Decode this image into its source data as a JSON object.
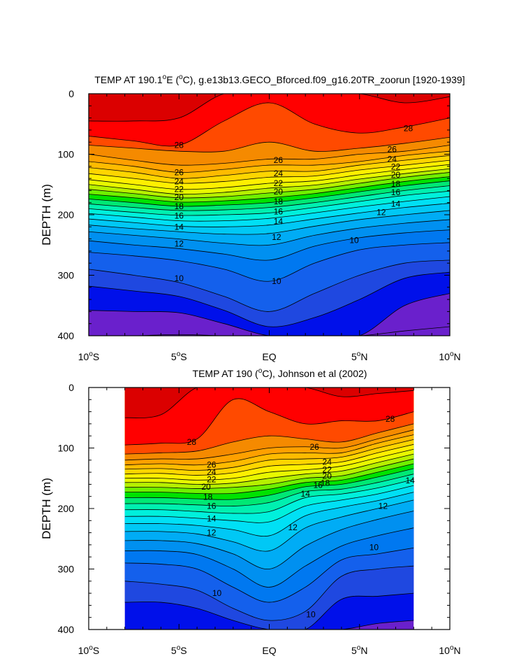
{
  "chart_data": [
    {
      "type": "heatmap",
      "subtype": "filled-contour",
      "title": "TEMP AT 190.1°E (°C), g.e13b13.GECO_Bforced.f09_g16.20TR_zoorun [1920-1939]",
      "title_parts": {
        "prefix": "TEMP AT 190.1",
        "sup1": "o",
        "mid1": "E (",
        "sup2": "o",
        "suffix": "C), g.e13b13.GECO_Bforced.f09_g16.20TR_zoorun [1920-1939]"
      },
      "ylabel": "DEPTH (m)",
      "xlabel": "",
      "xlim": [
        -10,
        10
      ],
      "ylim": [
        400,
        0
      ],
      "x_ticks": [
        {
          "value": -10,
          "num": "10",
          "deg": "o",
          "hemi": "S"
        },
        {
          "value": -5,
          "num": "5",
          "deg": "o",
          "hemi": "S"
        },
        {
          "value": 0,
          "num": "EQ",
          "deg": "",
          "hemi": ""
        },
        {
          "value": 5,
          "num": "5",
          "deg": "o",
          "hemi": "N"
        },
        {
          "value": 10,
          "num": "10",
          "deg": "o",
          "hemi": "N"
        }
      ],
      "y_ticks": [
        "0",
        "100",
        "200",
        "300",
        "400"
      ],
      "data_x_range": [
        -10,
        10
      ],
      "contour_interval": 1,
      "x_nodes": [
        -10,
        -7.5,
        -5,
        -2.5,
        0,
        2.5,
        5,
        7.5,
        10
      ],
      "isotherm_depths": {
        "29": [
          45,
          45,
          40,
          0,
          0,
          0,
          0,
          15,
          5
        ],
        "28": [
          70,
          78,
          85,
          45,
          15,
          50,
          65,
          55,
          40
        ],
        "27": [
          85,
          90,
          95,
          95,
          80,
          95,
          90,
          82,
          72
        ],
        "26": [
          100,
          110,
          118,
          115,
          108,
          108,
          100,
          95,
          85
        ],
        "25": [
          112,
          120,
          130,
          125,
          118,
          118,
          112,
          102,
          95
        ],
        "24": [
          122,
          130,
          140,
          135,
          128,
          128,
          118,
          110,
          102
        ],
        "23": [
          132,
          140,
          148,
          145,
          138,
          136,
          126,
          118,
          110
        ],
        "22": [
          142,
          150,
          158,
          155,
          148,
          144,
          134,
          125,
          117
        ],
        "21": [
          150,
          158,
          166,
          163,
          156,
          151,
          141,
          132,
          124
        ],
        "20": [
          158,
          165,
          172,
          170,
          164,
          158,
          148,
          138,
          130
        ],
        "19": [
          166,
          172,
          179,
          177,
          172,
          165,
          155,
          145,
          137
        ],
        "18": [
          174,
          180,
          186,
          184,
          180,
          172,
          162,
          152,
          144
        ],
        "17": [
          182,
          188,
          193,
          192,
          188,
          180,
          170,
          160,
          152
        ],
        "16": [
          190,
          196,
          201,
          200,
          197,
          188,
          178,
          168,
          161
        ],
        "15": [
          198,
          204,
          210,
          210,
          206,
          197,
          187,
          178,
          170
        ],
        "14": [
          207,
          213,
          219,
          220,
          217,
          207,
          197,
          188,
          181
        ],
        "13": [
          217,
          223,
          228,
          232,
          231,
          219,
          208,
          200,
          193
        ],
        "12": [
          228,
          234,
          240,
          247,
          250,
          234,
          222,
          214,
          208
        ],
        "11": [
          243,
          250,
          256,
          265,
          275,
          252,
          238,
          230,
          225
        ],
        "10": [
          262,
          268,
          276,
          290,
          310,
          280,
          258,
          250,
          246
        ],
        "9": [
          290,
          300,
          312,
          335,
          360,
          330,
          300,
          280,
          275
        ],
        "8": [
          318,
          326,
          335,
          358,
          385,
          370,
          340,
          305,
          295
        ],
        "7": [
          358,
          360,
          362,
          380,
          400,
          400,
          400,
          350,
          330
        ],
        "6": [
          400,
          400,
          398,
          400,
          400,
          400,
          400,
          392,
          385
        ]
      },
      "line_labels": [
        {
          "text": "28",
          "x": -5,
          "y": 85
        },
        {
          "text": "28",
          "x": 7.7,
          "y": 57
        },
        {
          "text": "26",
          "x": -5,
          "y": 130
        },
        {
          "text": "26",
          "x": 0.5,
          "y": 110
        },
        {
          "text": "26",
          "x": 6.8,
          "y": 92
        },
        {
          "text": "24",
          "x": -5,
          "y": 145
        },
        {
          "text": "24",
          "x": 0.5,
          "y": 132
        },
        {
          "text": "24",
          "x": 6.8,
          "y": 108
        },
        {
          "text": "22",
          "x": -5,
          "y": 158
        },
        {
          "text": "22",
          "x": 0.5,
          "y": 148
        },
        {
          "text": "22",
          "x": 7,
          "y": 121
        },
        {
          "text": "20",
          "x": -5,
          "y": 171
        },
        {
          "text": "20",
          "x": 0.5,
          "y": 162
        },
        {
          "text": "20",
          "x": 7,
          "y": 134
        },
        {
          "text": "18",
          "x": -5,
          "y": 186
        },
        {
          "text": "18",
          "x": 0.5,
          "y": 178
        },
        {
          "text": "18",
          "x": 7,
          "y": 149
        },
        {
          "text": "16",
          "x": -5,
          "y": 202
        },
        {
          "text": "16",
          "x": 0.5,
          "y": 195
        },
        {
          "text": "16",
          "x": 7,
          "y": 163
        },
        {
          "text": "14",
          "x": -5,
          "y": 220
        },
        {
          "text": "14",
          "x": 0.5,
          "y": 211
        },
        {
          "text": "14",
          "x": 7,
          "y": 182
        },
        {
          "text": "12",
          "x": -5,
          "y": 248
        },
        {
          "text": "12",
          "x": 0.4,
          "y": 237
        },
        {
          "text": "12",
          "x": 6.2,
          "y": 196
        },
        {
          "text": "10",
          "x": -5,
          "y": 305
        },
        {
          "text": "10",
          "x": 0.4,
          "y": 310
        },
        {
          "text": "10",
          "x": 4.7,
          "y": 242
        }
      ]
    },
    {
      "type": "heatmap",
      "subtype": "filled-contour",
      "title": "TEMP AT 190 (°C), Johnson et al (2002)",
      "title_parts": {
        "prefix": "TEMP AT 190 (",
        "sup1": "o",
        "mid1": "C), Johnson et al (2002)",
        "sup2": "",
        "suffix": ""
      },
      "ylabel": "DEPTH (m)",
      "xlabel": "",
      "xlim": [
        -10,
        10
      ],
      "ylim": [
        400,
        0
      ],
      "x_ticks": [
        {
          "value": -10,
          "num": "10",
          "deg": "o",
          "hemi": "S"
        },
        {
          "value": -5,
          "num": "5",
          "deg": "o",
          "hemi": "S"
        },
        {
          "value": 0,
          "num": "EQ",
          "deg": "",
          "hemi": ""
        },
        {
          "value": 5,
          "num": "5",
          "deg": "o",
          "hemi": "N"
        },
        {
          "value": 10,
          "num": "10",
          "deg": "o",
          "hemi": "N"
        }
      ],
      "y_ticks": [
        "0",
        "100",
        "200",
        "300",
        "400"
      ],
      "data_x_range": [
        -8,
        8
      ],
      "contour_interval": 1,
      "x_nodes": [
        -8,
        -6,
        -4,
        -2,
        0,
        2,
        4,
        6,
        8
      ],
      "isotherm_depths": {
        "29": [
          50,
          45,
          0,
          0,
          0,
          0,
          15,
          10,
          5
        ],
        "28": [
          95,
          92,
          85,
          20,
          40,
          60,
          55,
          55,
          40
        ],
        "27": [
          110,
          108,
          105,
          90,
          80,
          85,
          90,
          75,
          60
        ],
        "26": [
          120,
          118,
          118,
          110,
          100,
          98,
          100,
          85,
          70
        ],
        "25": [
          128,
          126,
          128,
          122,
          110,
          108,
          108,
          92,
          78
        ],
        "24": [
          135,
          134,
          137,
          132,
          120,
          118,
          115,
          100,
          86
        ],
        "23": [
          143,
          142,
          145,
          141,
          130,
          127,
          123,
          108,
          94
        ],
        "22": [
          150,
          150,
          153,
          150,
          140,
          136,
          130,
          116,
          102
        ],
        "21": [
          157,
          157,
          160,
          158,
          150,
          143,
          138,
          124,
          110
        ],
        "20": [
          165,
          165,
          167,
          165,
          160,
          150,
          146,
          132,
          118
        ],
        "19": [
          173,
          173,
          175,
          175,
          168,
          157,
          153,
          140,
          126
        ],
        "18": [
          182,
          182,
          184,
          185,
          178,
          164,
          160,
          148,
          134
        ],
        "17": [
          192,
          192,
          194,
          196,
          190,
          172,
          168,
          157,
          143
        ],
        "16": [
          202,
          202,
          205,
          208,
          205,
          182,
          176,
          166,
          152
        ],
        "15": [
          213,
          213,
          216,
          220,
          222,
          196,
          186,
          176,
          162
        ],
        "14": [
          225,
          225,
          228,
          235,
          245,
          212,
          198,
          187,
          173
        ],
        "13": [
          238,
          238,
          242,
          255,
          270,
          232,
          214,
          200,
          186
        ],
        "12": [
          253,
          253,
          258,
          275,
          300,
          262,
          235,
          218,
          204
        ],
        "11": [
          270,
          270,
          276,
          300,
          330,
          295,
          262,
          245,
          232
        ],
        "10": [
          290,
          292,
          300,
          330,
          355,
          330,
          285,
          275,
          265
        ],
        "9": [
          320,
          325,
          335,
          365,
          385,
          370,
          312,
          300,
          295
        ],
        "8": [
          355,
          355,
          365,
          385,
          400,
          400,
          350,
          345,
          340
        ],
        "7": [
          400,
          400,
          400,
          400,
          400,
          400,
          400,
          390,
          385
        ]
      },
      "line_labels": [
        {
          "text": "28",
          "x": -4.3,
          "y": 90
        },
        {
          "text": "28",
          "x": 6.7,
          "y": 52
        },
        {
          "text": "26",
          "x": -3.2,
          "y": 128
        },
        {
          "text": "26",
          "x": 2.5,
          "y": 98
        },
        {
          "text": "24",
          "x": -3.2,
          "y": 140
        },
        {
          "text": "24",
          "x": 3.2,
          "y": 123
        },
        {
          "text": "22",
          "x": -3.2,
          "y": 152
        },
        {
          "text": "22",
          "x": 3.2,
          "y": 136
        },
        {
          "text": "20",
          "x": -3.5,
          "y": 164
        },
        {
          "text": "20",
          "x": 3.2,
          "y": 146
        },
        {
          "text": "18",
          "x": -3.4,
          "y": 181
        },
        {
          "text": "18",
          "x": 3.1,
          "y": 158
        },
        {
          "text": "16",
          "x": -3.2,
          "y": 196
        },
        {
          "text": "16",
          "x": 2.7,
          "y": 161
        },
        {
          "text": "14",
          "x": -3.2,
          "y": 217
        },
        {
          "text": "14",
          "x": 2,
          "y": 176
        },
        {
          "text": "14",
          "x": 7.8,
          "y": 154
        },
        {
          "text": "12",
          "x": -3.2,
          "y": 240
        },
        {
          "text": "12",
          "x": 1.3,
          "y": 231
        },
        {
          "text": "12",
          "x": 6.3,
          "y": 196
        },
        {
          "text": "10",
          "x": -2.9,
          "y": 340
        },
        {
          "text": "10",
          "x": 2.3,
          "y": 375
        },
        {
          "text": "10",
          "x": 5.8,
          "y": 264
        }
      ]
    }
  ],
  "colormap": {
    "29": "#db0000",
    "28": "#ff0000",
    "27": "#ff4a00",
    "26": "#f58a00",
    "25": "#ffa000",
    "24": "#ffbb00",
    "23": "#ffd500",
    "22": "#ffef00",
    "21": "#e8f800",
    "20": "#b6f000",
    "19": "#6ff000",
    "18": "#00e200",
    "17": "#00e874",
    "16": "#00f0b0",
    "15": "#00f0dc",
    "14": "#00e0f5",
    "13": "#00c8f5",
    "12": "#00acf5",
    "11": "#0090f0",
    "10": "#0078f0",
    "9": "#1460ec",
    "8": "#1f48e0",
    "7": "#0010ea",
    "6": "#6a20cc"
  },
  "colormap_base": "#6a20cc"
}
